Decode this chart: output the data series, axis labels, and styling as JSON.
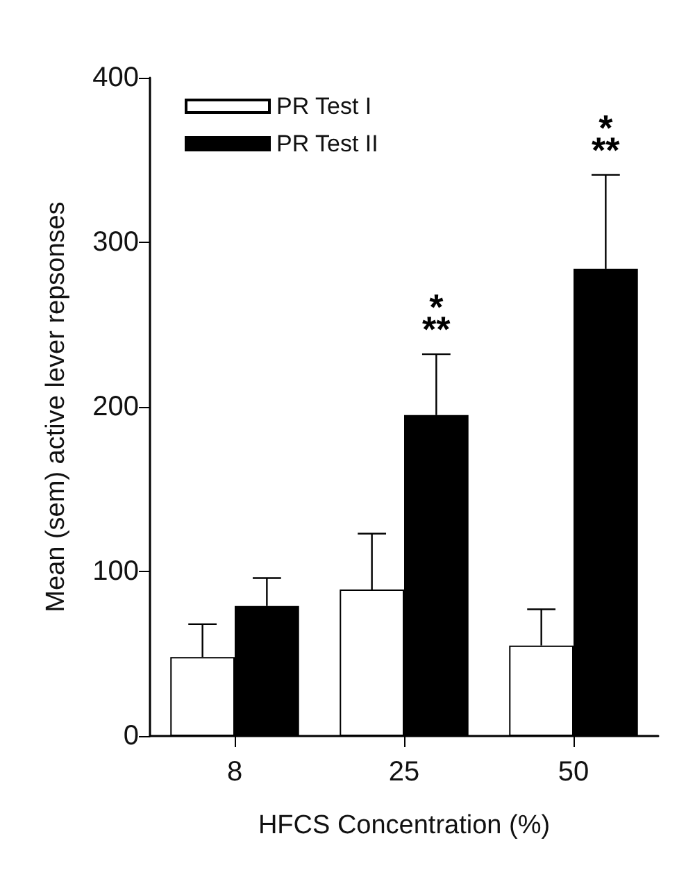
{
  "chart_data": {
    "type": "bar",
    "xlabel": "HFCS Concentration (%)",
    "ylabel": "Mean (sem) active lever repsonses",
    "categories": [
      "8",
      "25",
      "50"
    ],
    "series": [
      {
        "name": "PR Test I",
        "color": "#ffffff",
        "values": [
          48,
          89,
          55
        ],
        "errors": [
          [
            48,
            68
          ],
          [
            89,
            123
          ],
          [
            55,
            77
          ]
        ]
      },
      {
        "name": "PR Test II",
        "color": "#000000",
        "values": [
          79,
          195,
          284
        ],
        "errors": [
          [
            79,
            96
          ],
          [
            195,
            232
          ],
          [
            284,
            341
          ]
        ]
      }
    ],
    "ylim": [
      0,
      400
    ],
    "yticks": [
      0,
      100,
      200,
      300,
      400
    ],
    "grid": false,
    "legend": "top left",
    "annotations": [
      "*",
      "**",
      "*",
      "**"
    ]
  }
}
